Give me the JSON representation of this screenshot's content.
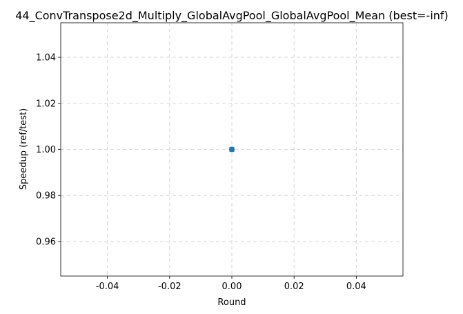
{
  "chart_data": {
    "type": "line",
    "title": "44_ConvTranspose2d_Multiply_GlobalAvgPool_GlobalAvgPool_Mean (best=-inf)",
    "xlabel": "Round",
    "ylabel": "Speedup (ref/test)",
    "xlim": [
      -0.055,
      0.055
    ],
    "ylim": [
      0.945,
      1.055
    ],
    "x_ticks": [
      -0.04,
      -0.02,
      0.0,
      0.02,
      0.04
    ],
    "x_tick_labels": [
      "-0.04",
      "-0.02",
      "0.00",
      "0.02",
      "0.04"
    ],
    "y_ticks": [
      0.96,
      0.98,
      1.0,
      1.02,
      1.04
    ],
    "y_tick_labels": [
      "0.96",
      "0.98",
      "1.00",
      "1.02",
      "1.04"
    ],
    "grid": true,
    "series": [
      {
        "x": [
          0
        ],
        "y": [
          1.0
        ],
        "color": "#1f77b4",
        "marker": "circle"
      },
      {
        "x": [
          0
        ],
        "y": [
          1.0
        ],
        "color": "#1f77b4",
        "marker": "square"
      }
    ]
  }
}
